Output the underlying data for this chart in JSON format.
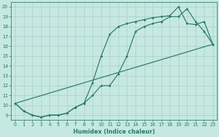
{
  "xlabel": "Humidex (Indice chaleur)",
  "bg_color": "#c5e8e0",
  "grid_color": "#a8cfc8",
  "line_color": "#2a7a6a",
  "xlim": [
    -0.5,
    23.5
  ],
  "ylim": [
    8.5,
    20.5
  ],
  "xticks": [
    0,
    1,
    2,
    3,
    4,
    5,
    6,
    7,
    8,
    9,
    10,
    11,
    12,
    13,
    14,
    15,
    16,
    17,
    18,
    19,
    20,
    21,
    22,
    23
  ],
  "yticks": [
    9,
    10,
    11,
    12,
    13,
    14,
    15,
    16,
    17,
    18,
    19,
    20
  ],
  "line1_x": [
    0,
    1,
    2,
    3,
    4,
    5,
    6,
    7,
    8,
    9,
    10,
    11,
    12,
    13,
    14,
    15,
    16,
    17,
    18,
    19,
    20,
    21,
    22,
    23
  ],
  "line1_y": [
    10.2,
    9.4,
    9.0,
    8.8,
    9.0,
    9.0,
    9.2,
    9.8,
    10.2,
    11.0,
    12.0,
    12.0,
    13.2,
    15.0,
    17.5,
    18.0,
    18.3,
    18.5,
    19.0,
    19.0,
    19.8,
    18.5,
    17.5,
    16.2
  ],
  "line2_x": [
    0,
    1,
    2,
    3,
    4,
    5,
    6,
    7,
    8,
    9,
    10,
    11,
    12,
    13,
    14,
    15,
    16,
    17,
    18,
    19,
    20,
    21,
    22,
    23
  ],
  "line2_y": [
    10.2,
    9.4,
    9.0,
    8.8,
    9.0,
    9.0,
    9.2,
    9.8,
    10.2,
    12.3,
    15.0,
    17.2,
    18.0,
    18.3,
    18.5,
    18.7,
    18.9,
    19.0,
    19.1,
    20.0,
    18.3,
    18.2,
    18.5,
    16.2
  ],
  "line3_x": [
    0,
    23
  ],
  "line3_y": [
    10.2,
    16.2
  ]
}
